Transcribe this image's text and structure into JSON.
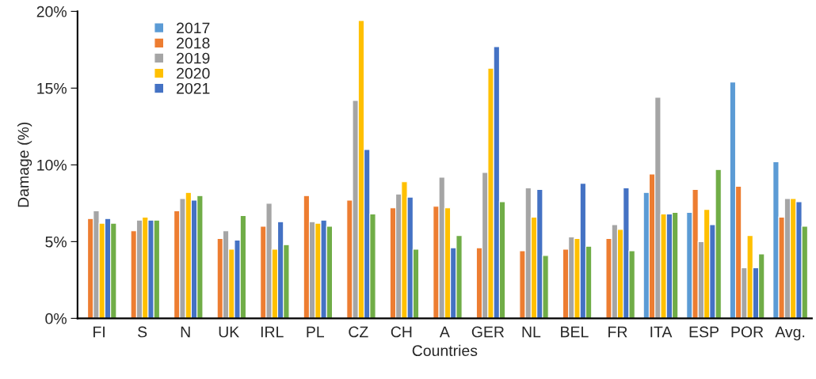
{
  "chart_data": {
    "type": "bar",
    "xlabel": "Countries",
    "ylabel": "Damage (%)",
    "categories": [
      "FI",
      "S",
      "N",
      "UK",
      "IRL",
      "PL",
      "CZ",
      "CH",
      "A",
      "GER",
      "NL",
      "BEL",
      "FR",
      "ITA",
      "ESP",
      "POR",
      "Avg."
    ],
    "series": [
      {
        "name": "2017",
        "color": "#5b9bd5",
        "values": [
          null,
          null,
          null,
          null,
          null,
          null,
          null,
          null,
          null,
          null,
          null,
          null,
          null,
          8.2,
          6.9,
          15.4,
          10.2
        ]
      },
      {
        "name": "2018",
        "color": "#ed7d31",
        "values": [
          6.5,
          5.7,
          7.0,
          5.2,
          6.0,
          8.0,
          7.7,
          7.2,
          7.3,
          4.6,
          4.4,
          4.5,
          5.2,
          9.4,
          8.4,
          8.6,
          6.6
        ]
      },
      {
        "name": "2019",
        "color": "#a5a5a5",
        "values": [
          7.0,
          6.4,
          7.8,
          5.7,
          7.5,
          6.3,
          14.2,
          8.1,
          9.2,
          9.5,
          8.5,
          5.3,
          6.1,
          14.4,
          5.0,
          3.3,
          7.8
        ]
      },
      {
        "name": "2020",
        "color": "#ffc000",
        "values": [
          6.2,
          6.6,
          8.2,
          4.5,
          4.5,
          6.2,
          19.4,
          8.9,
          7.2,
          16.3,
          6.6,
          5.2,
          5.8,
          6.8,
          7.1,
          5.4,
          7.8
        ]
      },
      {
        "name": "2021",
        "color": "#4472c4",
        "values": [
          6.5,
          6.4,
          7.7,
          5.1,
          6.3,
          6.4,
          11.0,
          7.9,
          4.6,
          17.7,
          8.4,
          8.8,
          8.5,
          6.8,
          6.1,
          3.3,
          7.6
        ]
      },
      {
        "color": "#70ad47",
        "values": [
          6.2,
          6.4,
          8.0,
          6.7,
          4.8,
          6.0,
          6.8,
          4.5,
          5.4,
          7.6,
          4.1,
          4.7,
          4.4,
          6.9,
          9.7,
          4.2,
          6.0
        ]
      }
    ],
    "ylim": [
      0,
      20
    ],
    "yticks": [
      {
        "value": 0,
        "label": "0%"
      },
      {
        "value": 5,
        "label": "5%"
      },
      {
        "value": 10,
        "label": "10%"
      },
      {
        "value": 15,
        "label": "15%"
      },
      {
        "value": 20,
        "label": "20%"
      }
    ],
    "grid": false,
    "legend": "top left"
  }
}
